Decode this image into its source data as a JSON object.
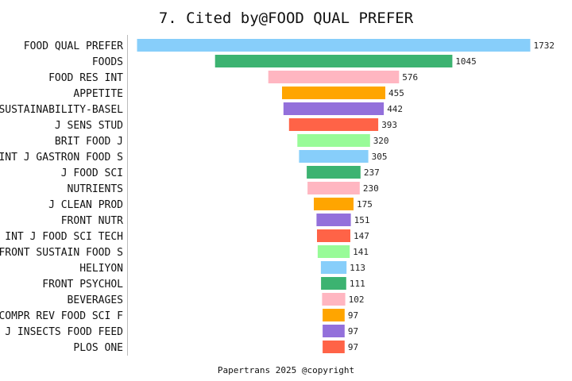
{
  "chart_data": {
    "type": "bar",
    "orientation": "horizontal",
    "layout": "centered-funnel",
    "title": "7. Cited by@FOOD QUAL PREFER",
    "xlabel": "",
    "ylabel": "",
    "grid": false,
    "legend": "none",
    "data_labels": true,
    "categories": [
      "FOOD QUAL PREFER",
      "FOODS",
      "FOOD RES INT",
      "APPETITE",
      "SUSTAINABILITY-BASEL",
      "J SENS STUD",
      "BRIT FOOD J",
      "INT J GASTRON FOOD S",
      "J FOOD SCI",
      "NUTRIENTS",
      "J CLEAN PROD",
      "FRONT NUTR",
      "INT J FOOD SCI TECH",
      "FRONT SUSTAIN FOOD S",
      "HELIYON",
      "FRONT PSYCHOL",
      "BEVERAGES",
      "COMPR REV FOOD SCI F",
      "J INSECTS FOOD FEED",
      "PLOS ONE"
    ],
    "values": [
      1732,
      1045,
      576,
      455,
      442,
      393,
      320,
      305,
      237,
      230,
      175,
      151,
      147,
      141,
      113,
      111,
      102,
      97,
      97,
      97
    ],
    "colors": [
      "#87CEFA",
      "#3CB371",
      "#FFB6C1",
      "#FFA500",
      "#9370DB",
      "#FF6347",
      "#98FB98"
    ]
  },
  "footer": "Papertrans 2025 @copyright"
}
